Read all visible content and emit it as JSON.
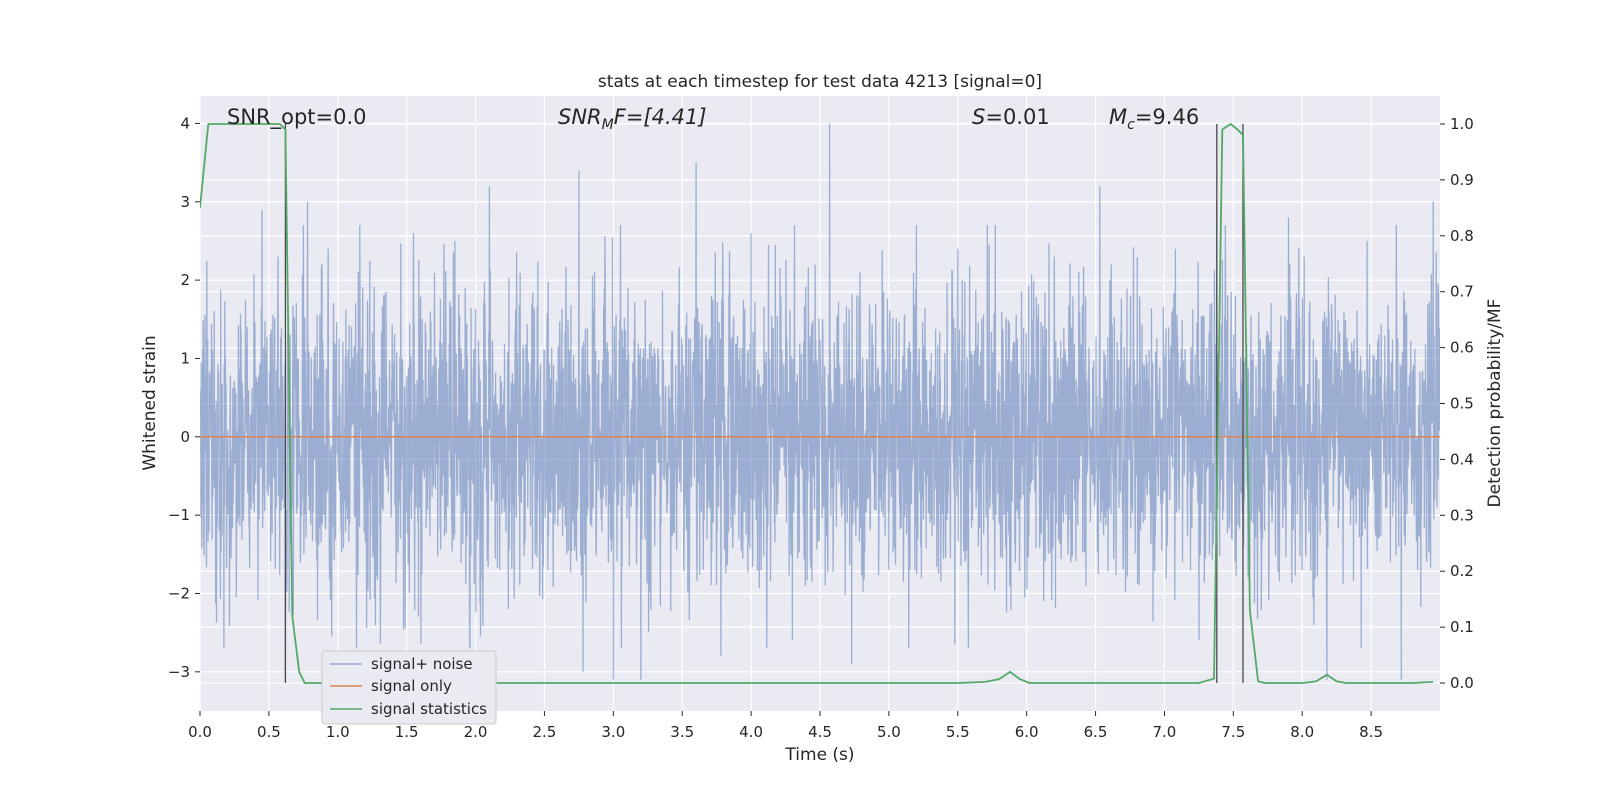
{
  "chart_data": {
    "type": "line",
    "title": "stats at each timestep for test data 4213 [signal=0]",
    "xlabel": "Time (s)",
    "ylabel": "Whitened strain",
    "ylabel_right": "Detection probability/MF",
    "xlim": [
      0.0,
      9.0
    ],
    "ylim": [
      -3.5,
      4.35
    ],
    "ylim_right": [
      -0.05,
      1.05
    ],
    "x_ticks": [
      "0.0",
      "0.5",
      "1.0",
      "1.5",
      "2.0",
      "2.5",
      "3.0",
      "3.5",
      "4.0",
      "4.5",
      "5.0",
      "5.5",
      "6.0",
      "6.5",
      "7.0",
      "7.5",
      "8.0",
      "8.5"
    ],
    "x_tick_values": [
      0.0,
      0.5,
      1.0,
      1.5,
      2.0,
      2.5,
      3.0,
      3.5,
      4.0,
      4.5,
      5.0,
      5.5,
      6.0,
      6.5,
      7.0,
      7.5,
      8.0,
      8.5
    ],
    "y_ticks": [
      "−3",
      "−2",
      "−1",
      "0",
      "1",
      "2",
      "3",
      "4"
    ],
    "y_tick_values": [
      -3,
      -2,
      -1,
      0,
      1,
      2,
      3,
      4
    ],
    "y_ticks_right": [
      "0.0",
      "0.1",
      "0.2",
      "0.3",
      "0.4",
      "0.5",
      "0.6",
      "0.7",
      "0.8",
      "0.9",
      "1.0"
    ],
    "y_tick_values_right": [
      0.0,
      0.1,
      0.2,
      0.3,
      0.4,
      0.5,
      0.6,
      0.7,
      0.8,
      0.9,
      1.0
    ],
    "grid": true,
    "legend_position": "bottom-left",
    "annotations": {
      "snr_opt": "SNR_opt=0.0",
      "snr_mf_prefix": "SNR",
      "snr_mf_sub": "M",
      "snr_mf_suffix": "F=[4.41]",
      "s_prefix": "S",
      "s_suffix": "=0.01",
      "mc_prefix": "M",
      "mc_sub": "c",
      "mc_suffix": "=9.46"
    },
    "vertical_lines_x": [
      0.62,
      7.38,
      7.57
    ],
    "series": [
      {
        "name": "signal+ noise",
        "color": "#4c72b0",
        "opacity": 0.5,
        "duration": 9.0,
        "noise_std": 0.95,
        "peaks": [
          [
            0.45,
            2.9
          ],
          [
            0.62,
            -3.1
          ],
          [
            0.78,
            3.0
          ],
          [
            0.93,
            2.4
          ],
          [
            1.55,
            2.6
          ],
          [
            1.85,
            2.5
          ],
          [
            2.1,
            3.2
          ],
          [
            2.75,
            3.4
          ],
          [
            2.78,
            -3.0
          ],
          [
            3.0,
            -3.1
          ],
          [
            3.2,
            -3.1
          ],
          [
            3.6,
            3.5
          ],
          [
            3.78,
            -2.8
          ],
          [
            4.0,
            2.6
          ],
          [
            4.3,
            -2.6
          ],
          [
            4.57,
            4.0
          ],
          [
            4.73,
            -2.9
          ],
          [
            5.2,
            2.7
          ],
          [
            5.5,
            2.4
          ],
          [
            6.2,
            2.3
          ],
          [
            6.53,
            3.2
          ],
          [
            7.08,
            2.4
          ],
          [
            7.25,
            -2.6
          ],
          [
            7.38,
            3.0
          ],
          [
            7.9,
            2.8
          ],
          [
            8.18,
            -3.1
          ],
          [
            8.47,
            2.5
          ],
          [
            8.72,
            -3.1
          ],
          [
            8.95,
            3.0
          ]
        ]
      },
      {
        "name": "signal only",
        "color": "#dd8452",
        "x": [
          0.0,
          9.0
        ],
        "y": [
          0.0,
          0.0
        ]
      },
      {
        "name": "signal statistics",
        "color": "#55a868",
        "axis": "right",
        "x": [
          0.0,
          0.06,
          0.12,
          0.2,
          0.3,
          0.4,
          0.5,
          0.58,
          0.62,
          0.67,
          0.72,
          0.76,
          0.8,
          1.0,
          2.0,
          3.0,
          4.0,
          5.0,
          5.5,
          5.7,
          5.8,
          5.88,
          5.95,
          6.02,
          6.1,
          6.5,
          7.0,
          7.25,
          7.36,
          7.39,
          7.42,
          7.48,
          7.53,
          7.57,
          7.62,
          7.68,
          7.73,
          7.8,
          8.0,
          8.1,
          8.18,
          8.25,
          8.32,
          8.5,
          8.8,
          8.95
        ],
        "y": [
          0.85,
          1.0,
          1.0,
          1.0,
          1.0,
          1.0,
          1.0,
          1.0,
          0.99,
          0.12,
          0.02,
          0.0,
          0.0,
          0.0,
          0.0,
          0.0,
          0.0,
          0.0,
          0.0,
          0.002,
          0.007,
          0.02,
          0.007,
          0.0,
          0.0,
          0.0,
          0.0,
          0.0,
          0.008,
          0.5,
          0.99,
          1.0,
          0.99,
          0.98,
          0.13,
          0.003,
          0.0,
          0.0,
          0.0,
          0.003,
          0.015,
          0.003,
          0.0,
          0.0,
          0.0,
          0.002
        ]
      }
    ]
  }
}
